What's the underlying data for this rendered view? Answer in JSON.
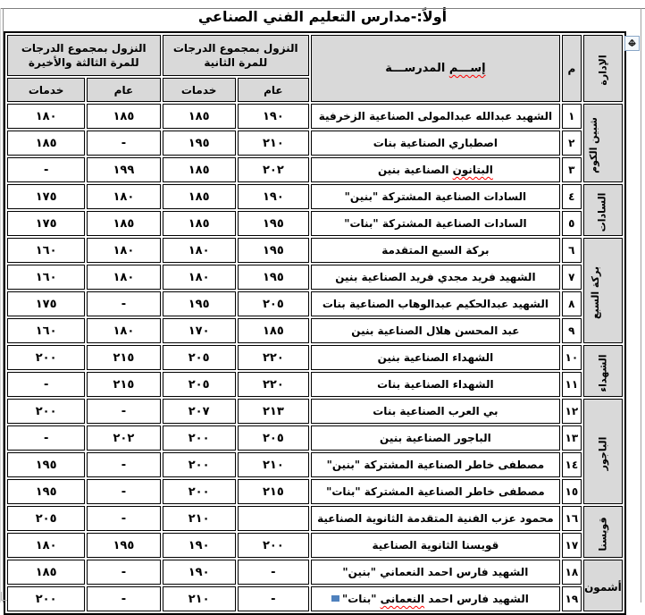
{
  "title": "أولاً:-مدارس التعليم الفني الصناعي",
  "icons": {
    "table_move_handle": "four-way-arrow",
    "move_glyph_h": "↔",
    "move_glyph_v": "↕"
  },
  "colors": {
    "header_fill": "#d9d9d9",
    "table_border": "#000000",
    "spellcheck_underline": "#ff0000",
    "selection_blue": "#4f81bd"
  },
  "table": {
    "headers": {
      "admin": "الإدارة",
      "num": "م",
      "school_word1": "إســـم",
      "school_word2": "المدرســـة",
      "group_second": "النزول بمجموع الدرجات للمرة الثانية",
      "group_third": "النزول بمجموع الدرجات للمرة الثالثة والأخيرة",
      "general": "عام",
      "services": "خدمات"
    },
    "admin_groups": [
      {
        "label": "شبين الكوم",
        "rows": 3,
        "vertical": true
      },
      {
        "label": "السادات",
        "rows": 2,
        "vertical": true
      },
      {
        "label": "بركة السبع",
        "rows": 4,
        "vertical": true
      },
      {
        "label": "الشهداء",
        "rows": 2,
        "vertical": true
      },
      {
        "label": "الباجور",
        "rows": 4,
        "vertical": true
      },
      {
        "label": "قويسنا",
        "rows": 2,
        "vertical": true
      },
      {
        "label": "أشمون",
        "rows": 2,
        "vertical": false
      }
    ],
    "rows": [
      {
        "num": "١",
        "school": "الشهيد عبدالله عبدالمولى الصناعية الزخرفية",
        "mark": "",
        "scores": [
          "١٩٠",
          "١٨٥",
          "١٨٥",
          "١٨٠"
        ]
      },
      {
        "num": "٢",
        "school": "اصطباري الصناعية بنات",
        "mark": "",
        "scores": [
          "٢١٠",
          "١٩٥",
          "-",
          "١٨٥"
        ]
      },
      {
        "num": "٣",
        "school": "البتانون الصناعية بنين",
        "mark": "البتانون",
        "scores": [
          "٢٠٢",
          "١٨٥",
          "١٩٩",
          "-"
        ]
      },
      {
        "num": "٤",
        "school": "السادات الصناعية المشتركة \"بنين\"",
        "mark": "",
        "scores": [
          "١٩٠",
          "١٨٥",
          "١٨٠",
          "١٧٥"
        ]
      },
      {
        "num": "٥",
        "school": "السادات الصناعية المشتركة \"بنات\"",
        "mark": "",
        "scores": [
          "١٩٥",
          "١٨٥",
          "١٨٥",
          "١٧٥"
        ]
      },
      {
        "num": "٦",
        "school": "بركة السبع المتقدمة",
        "mark": "",
        "scores": [
          "١٩٥",
          "١٨٠",
          "١٨٠",
          "١٦٠"
        ]
      },
      {
        "num": "٧",
        "school": "الشهيد فريد مجدي فريد الصناعية بنين",
        "mark": "",
        "scores": [
          "١٩٥",
          "١٨٠",
          "١٨٠",
          "١٦٠"
        ]
      },
      {
        "num": "٨",
        "school": "الشهيد عبدالحكيم عبدالوهاب الصناعية بنات",
        "mark": "",
        "scores": [
          "٢٠٥",
          "١٩٥",
          "-",
          "١٧٥"
        ]
      },
      {
        "num": "٩",
        "school": "عبد المحسن هلال الصناعية بنين",
        "mark": "",
        "scores": [
          "١٨٥",
          "١٧٠",
          "١٨٠",
          "١٦٠"
        ]
      },
      {
        "num": "١٠",
        "school": "الشهداء الصناعية بنين",
        "mark": "",
        "scores": [
          "٢٢٠",
          "٢٠٥",
          "٢١٥",
          "٢٠٠"
        ]
      },
      {
        "num": "١١",
        "school": "الشهداء الصناعية بنات",
        "mark": "",
        "scores": [
          "٢٢٠",
          "٢٠٥",
          "٢١٥",
          "-"
        ]
      },
      {
        "num": "١٢",
        "school": "بي العرب الصناعية بنات",
        "mark": "",
        "scores": [
          "٢١٣",
          "٢٠٧",
          "-",
          "٢٠٠"
        ]
      },
      {
        "num": "١٣",
        "school": "الباجور الصناعية بنين",
        "mark": "",
        "scores": [
          "٢٠٥",
          "٢٠٠",
          "٢٠٢",
          "-"
        ]
      },
      {
        "num": "١٤",
        "school": "مصطفى خاطر الصناعية المشتركة \"بنين\"",
        "mark": "",
        "scores": [
          "٢١٠",
          "٢٠٠",
          "-",
          "١٩٥"
        ]
      },
      {
        "num": "١٥",
        "school": "مصطفى خاطر الصناعية المشتركة \"بنات\"",
        "mark": "",
        "scores": [
          "٢١٥",
          "٢٠٠",
          "-",
          "١٩٥"
        ]
      },
      {
        "num": "١٦",
        "school": "محمود عزب الفنية المتقدمة الثانوية الصناعية",
        "mark": "",
        "scores": [
          "",
          "٢١٠",
          "-",
          "٢٠٥"
        ]
      },
      {
        "num": "١٧",
        "school": "قويسنا الثانوية الصناعية",
        "mark": "",
        "scores": [
          "٢٠٠",
          "١٩٠",
          "١٩٥",
          "١٨٠"
        ]
      },
      {
        "num": "١٨",
        "school": "الشهيد فارس احمد النعماني \"بنين\"",
        "mark": "",
        "scores": [
          "-",
          "١٩٠",
          "-",
          "١٨٥"
        ]
      },
      {
        "num": "١٩",
        "school": "الشهيد فارس احمد النعمانى \"بنات\"",
        "mark": "النعمانى",
        "scores": [
          "-",
          "٢١٠",
          "-",
          "٢٠٠"
        ]
      }
    ]
  }
}
